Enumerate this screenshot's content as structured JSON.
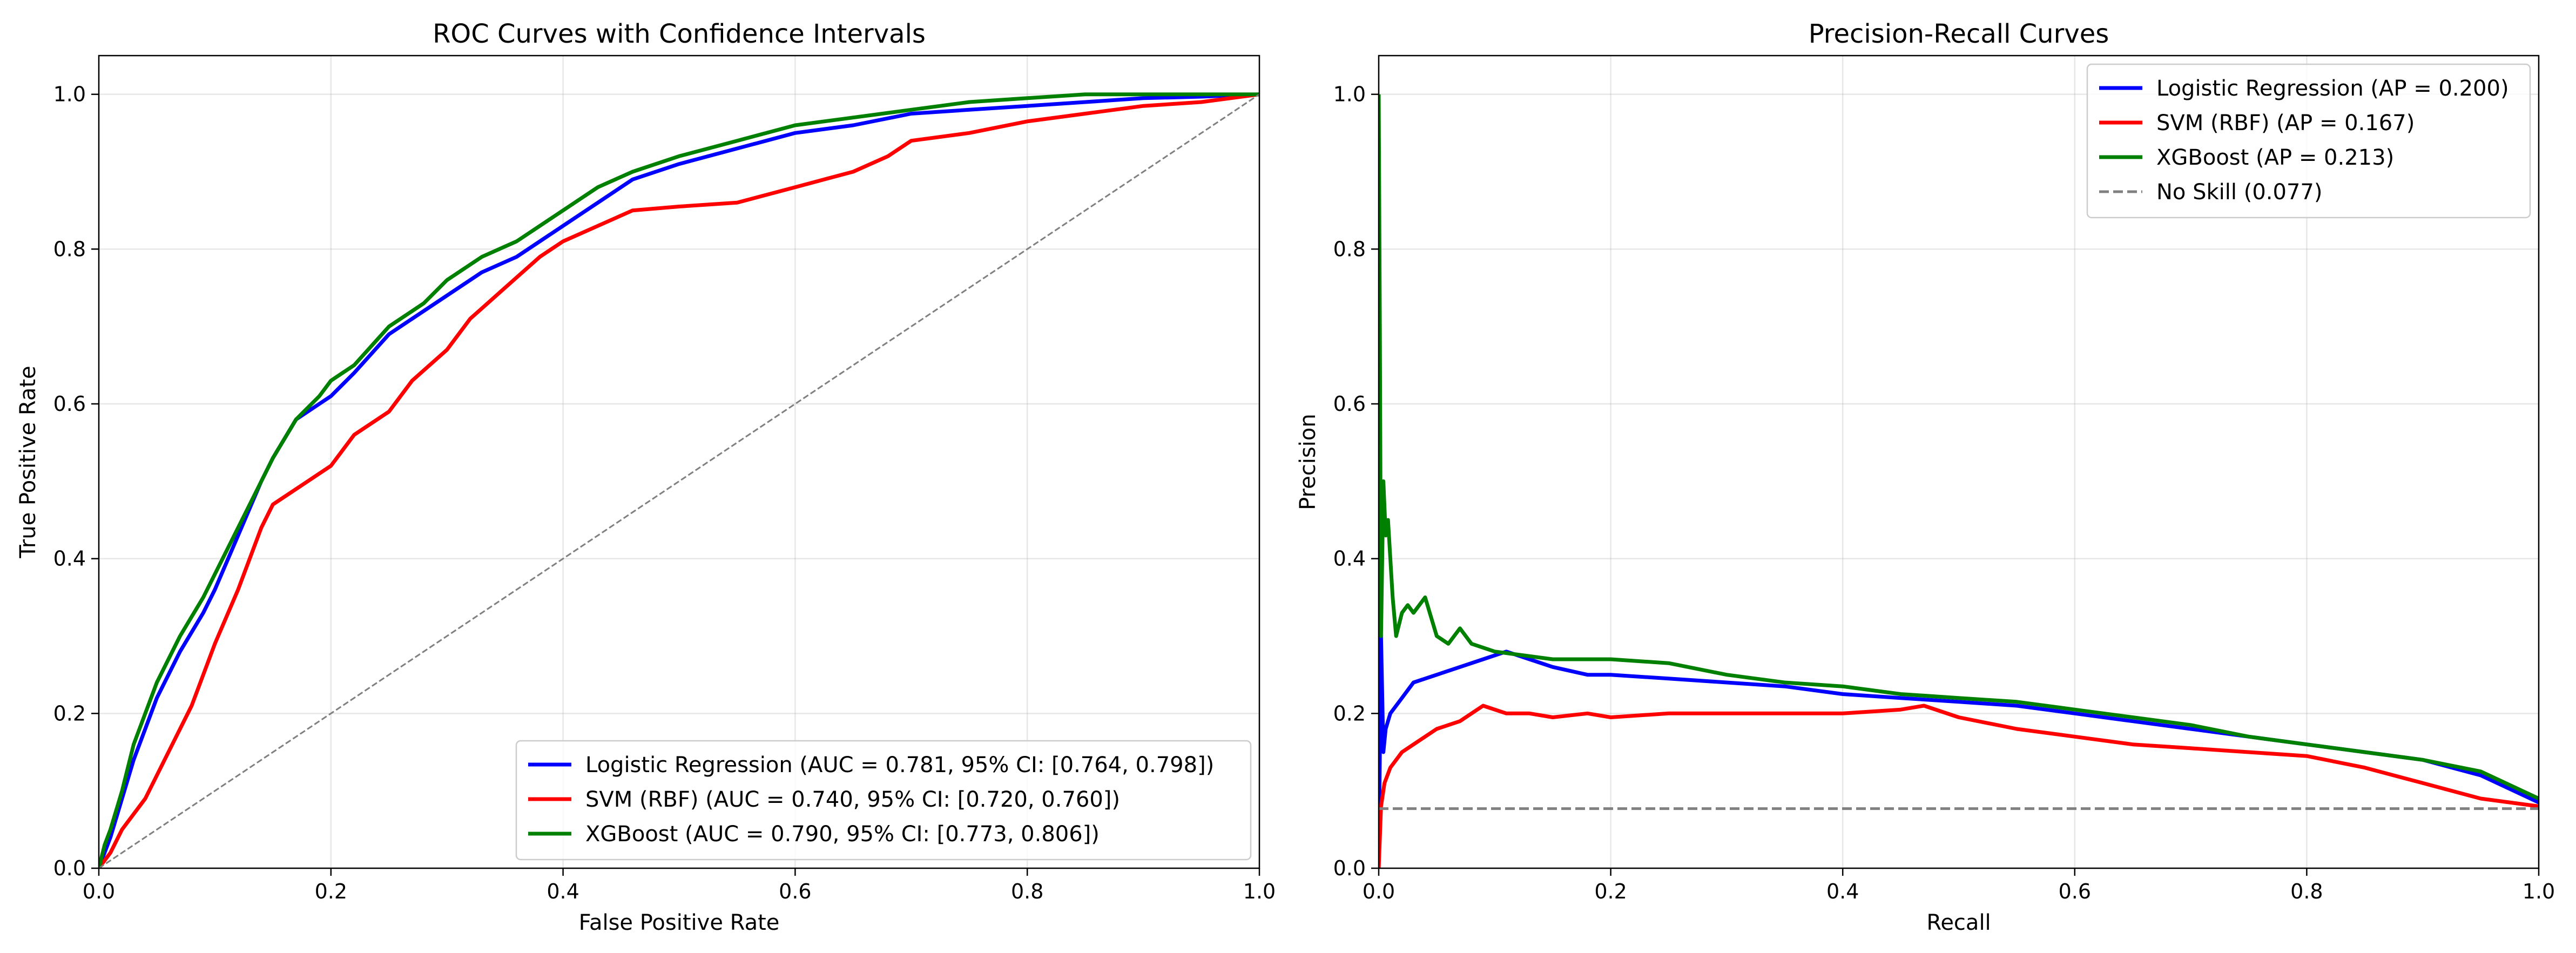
{
  "chart_data": [
    {
      "type": "line",
      "title": "ROC Curves with Confidence Intervals",
      "xlabel": "False Positive Rate",
      "ylabel": "True Positive Rate",
      "xlim": [
        0.0,
        1.0
      ],
      "ylim": [
        0.0,
        1.05
      ],
      "xticks": [
        "0.0",
        "0.2",
        "0.4",
        "0.6",
        "0.8",
        "1.0"
      ],
      "yticks": [
        "0.0",
        "0.2",
        "0.4",
        "0.6",
        "0.8",
        "1.0"
      ],
      "grid": true,
      "legend_position": "lower-right",
      "series": [
        {
          "name": "Logistic Regression (AUC = 0.781, 95% CI: [0.764, 0.798])",
          "color": "#0000ff",
          "style": "solid",
          "x": [
            0.0,
            0.005,
            0.01,
            0.02,
            0.03,
            0.05,
            0.07,
            0.09,
            0.1,
            0.12,
            0.14,
            0.15,
            0.17,
            0.19,
            0.2,
            0.22,
            0.25,
            0.27,
            0.3,
            0.33,
            0.36,
            0.4,
            0.43,
            0.46,
            0.5,
            0.55,
            0.6,
            0.65,
            0.7,
            0.75,
            0.8,
            0.85,
            0.9,
            0.95,
            1.0
          ],
          "y": [
            0.0,
            0.02,
            0.04,
            0.09,
            0.14,
            0.22,
            0.28,
            0.33,
            0.36,
            0.43,
            0.5,
            0.53,
            0.58,
            0.6,
            0.61,
            0.64,
            0.69,
            0.71,
            0.74,
            0.77,
            0.79,
            0.83,
            0.86,
            0.89,
            0.91,
            0.93,
            0.95,
            0.96,
            0.975,
            0.98,
            0.985,
            0.99,
            0.995,
            0.997,
            1.0
          ]
        },
        {
          "name": "SVM (RBF) (AUC = 0.740, 95% CI: [0.720, 0.760])",
          "color": "#ff0000",
          "style": "solid",
          "x": [
            0.0,
            0.005,
            0.01,
            0.02,
            0.04,
            0.06,
            0.08,
            0.1,
            0.12,
            0.14,
            0.15,
            0.17,
            0.2,
            0.22,
            0.25,
            0.27,
            0.3,
            0.32,
            0.35,
            0.38,
            0.4,
            0.43,
            0.46,
            0.5,
            0.55,
            0.6,
            0.65,
            0.68,
            0.7,
            0.75,
            0.8,
            0.85,
            0.9,
            0.95,
            1.0
          ],
          "y": [
            0.0,
            0.01,
            0.02,
            0.05,
            0.09,
            0.15,
            0.21,
            0.29,
            0.36,
            0.44,
            0.47,
            0.49,
            0.52,
            0.56,
            0.59,
            0.63,
            0.67,
            0.71,
            0.75,
            0.79,
            0.81,
            0.83,
            0.85,
            0.855,
            0.86,
            0.88,
            0.9,
            0.92,
            0.94,
            0.95,
            0.965,
            0.975,
            0.985,
            0.99,
            1.0
          ]
        },
        {
          "name": "XGBoost (AUC = 0.790, 95% CI: [0.773, 0.806])",
          "color": "#008000",
          "style": "solid",
          "x": [
            0.0,
            0.005,
            0.01,
            0.02,
            0.03,
            0.05,
            0.07,
            0.09,
            0.1,
            0.12,
            0.14,
            0.15,
            0.17,
            0.19,
            0.2,
            0.22,
            0.25,
            0.28,
            0.3,
            0.33,
            0.36,
            0.4,
            0.43,
            0.46,
            0.5,
            0.55,
            0.6,
            0.65,
            0.7,
            0.75,
            0.8,
            0.85,
            0.9,
            0.95,
            1.0
          ],
          "y": [
            0.0,
            0.03,
            0.05,
            0.1,
            0.16,
            0.24,
            0.3,
            0.35,
            0.38,
            0.44,
            0.5,
            0.53,
            0.58,
            0.61,
            0.63,
            0.65,
            0.7,
            0.73,
            0.76,
            0.79,
            0.81,
            0.85,
            0.88,
            0.9,
            0.92,
            0.94,
            0.96,
            0.97,
            0.98,
            0.99,
            0.995,
            1.0,
            1.0,
            1.0,
            1.0
          ]
        },
        {
          "name": "",
          "color": "#808080",
          "style": "dashed",
          "x": [
            0.0,
            1.0
          ],
          "y": [
            0.0,
            1.0
          ]
        }
      ]
    },
    {
      "type": "line",
      "title": "Precision-Recall Curves",
      "xlabel": "Recall",
      "ylabel": "Precision",
      "xlim": [
        0.0,
        1.0
      ],
      "ylim": [
        0.0,
        1.05
      ],
      "xticks": [
        "0.0",
        "0.2",
        "0.4",
        "0.6",
        "0.8",
        "1.0"
      ],
      "yticks": [
        "0.0",
        "0.2",
        "0.4",
        "0.6",
        "0.8",
        "1.0"
      ],
      "grid": true,
      "legend_position": "upper-right",
      "series": [
        {
          "name": "Logistic Regression (AP = 0.200)",
          "color": "#0000ff",
          "style": "solid",
          "x": [
            0.0,
            0.002,
            0.004,
            0.006,
            0.01,
            0.02,
            0.03,
            0.05,
            0.07,
            0.09,
            0.11,
            0.13,
            0.15,
            0.18,
            0.2,
            0.25,
            0.3,
            0.35,
            0.4,
            0.45,
            0.5,
            0.55,
            0.6,
            0.65,
            0.7,
            0.75,
            0.8,
            0.85,
            0.9,
            0.95,
            1.0
          ],
          "y": [
            0.0,
            0.3,
            0.15,
            0.18,
            0.2,
            0.22,
            0.24,
            0.25,
            0.26,
            0.27,
            0.28,
            0.27,
            0.26,
            0.25,
            0.25,
            0.245,
            0.24,
            0.235,
            0.225,
            0.22,
            0.215,
            0.21,
            0.2,
            0.19,
            0.18,
            0.17,
            0.16,
            0.15,
            0.14,
            0.12,
            0.085
          ]
        },
        {
          "name": "SVM (RBF) (AP = 0.167)",
          "color": "#ff0000",
          "style": "solid",
          "x": [
            0.0,
            0.002,
            0.005,
            0.01,
            0.02,
            0.03,
            0.05,
            0.07,
            0.09,
            0.11,
            0.13,
            0.15,
            0.18,
            0.2,
            0.25,
            0.3,
            0.35,
            0.4,
            0.45,
            0.47,
            0.5,
            0.55,
            0.6,
            0.65,
            0.7,
            0.75,
            0.8,
            0.85,
            0.9,
            0.95,
            1.0
          ],
          "y": [
            0.0,
            0.08,
            0.11,
            0.13,
            0.15,
            0.16,
            0.18,
            0.19,
            0.21,
            0.2,
            0.2,
            0.195,
            0.2,
            0.195,
            0.2,
            0.2,
            0.2,
            0.2,
            0.205,
            0.21,
            0.195,
            0.18,
            0.17,
            0.16,
            0.155,
            0.15,
            0.145,
            0.13,
            0.11,
            0.09,
            0.08
          ]
        },
        {
          "name": "XGBoost (AP = 0.213)",
          "color": "#008000",
          "style": "solid",
          "x": [
            0.0,
            0.001,
            0.002,
            0.004,
            0.006,
            0.008,
            0.01,
            0.012,
            0.015,
            0.02,
            0.025,
            0.03,
            0.04,
            0.05,
            0.06,
            0.07,
            0.08,
            0.1,
            0.15,
            0.2,
            0.25,
            0.3,
            0.35,
            0.4,
            0.45,
            0.5,
            0.55,
            0.6,
            0.65,
            0.7,
            0.75,
            0.8,
            0.85,
            0.9,
            0.95,
            1.0
          ],
          "y": [
            1.0,
            0.7,
            0.3,
            0.5,
            0.43,
            0.45,
            0.4,
            0.35,
            0.3,
            0.33,
            0.34,
            0.33,
            0.35,
            0.3,
            0.29,
            0.31,
            0.29,
            0.28,
            0.27,
            0.27,
            0.265,
            0.25,
            0.24,
            0.235,
            0.225,
            0.22,
            0.215,
            0.205,
            0.195,
            0.185,
            0.17,
            0.16,
            0.15,
            0.14,
            0.125,
            0.09
          ]
        },
        {
          "name": "No Skill (0.077)",
          "color": "#808080",
          "style": "dashed",
          "x": [
            0.0,
            1.0
          ],
          "y": [
            0.077,
            0.077
          ]
        }
      ]
    }
  ]
}
